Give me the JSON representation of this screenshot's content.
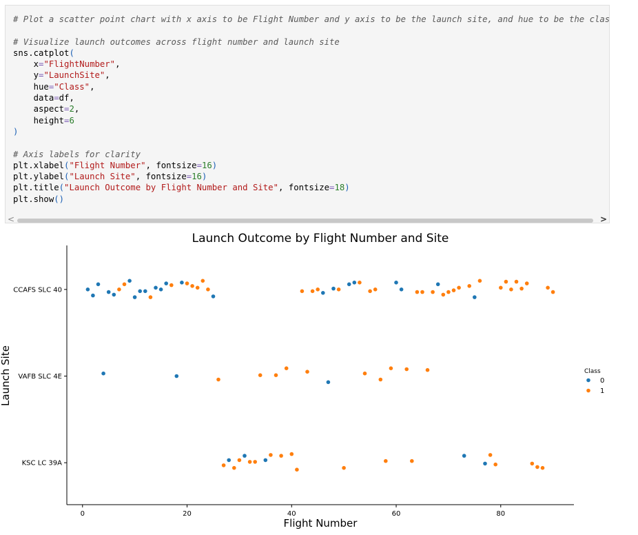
{
  "code_cell": {
    "lines": [
      [
        {
          "t": "# Plot a scatter point chart with x axis to be Flight Number and y axis to be the launch site, and hue to be the class va",
          "c": "cm"
        }
      ],
      [
        {
          "t": "",
          "c": ""
        }
      ],
      [
        {
          "t": "# Visualize launch outcomes across flight number and launch site",
          "c": "cm"
        }
      ],
      [
        {
          "t": "sns.catplot",
          "c": ""
        },
        {
          "t": "(",
          "c": "pn"
        }
      ],
      [
        {
          "t": "    x",
          "c": ""
        },
        {
          "t": "=",
          "c": "op"
        },
        {
          "t": "\"FlightNumber\"",
          "c": "str"
        },
        {
          "t": ",",
          "c": ""
        }
      ],
      [
        {
          "t": "    y",
          "c": ""
        },
        {
          "t": "=",
          "c": "op"
        },
        {
          "t": "\"LaunchSite\"",
          "c": "str"
        },
        {
          "t": ",",
          "c": ""
        }
      ],
      [
        {
          "t": "    hue",
          "c": ""
        },
        {
          "t": "=",
          "c": "op"
        },
        {
          "t": "\"Class\"",
          "c": "str"
        },
        {
          "t": ",",
          "c": ""
        }
      ],
      [
        {
          "t": "    data",
          "c": ""
        },
        {
          "t": "=",
          "c": "op"
        },
        {
          "t": "df,",
          "c": ""
        }
      ],
      [
        {
          "t": "    aspect",
          "c": ""
        },
        {
          "t": "=",
          "c": "op"
        },
        {
          "t": "2",
          "c": "num"
        },
        {
          "t": ",",
          "c": ""
        }
      ],
      [
        {
          "t": "    height",
          "c": ""
        },
        {
          "t": "=",
          "c": "op"
        },
        {
          "t": "6",
          "c": "num"
        }
      ],
      [
        {
          "t": ")",
          "c": "pn"
        }
      ],
      [
        {
          "t": "",
          "c": ""
        }
      ],
      [
        {
          "t": "# Axis labels for clarity",
          "c": "cm"
        }
      ],
      [
        {
          "t": "plt.xlabel",
          "c": ""
        },
        {
          "t": "(",
          "c": "pn"
        },
        {
          "t": "\"Flight Number\"",
          "c": "str"
        },
        {
          "t": ", fontsize",
          "c": ""
        },
        {
          "t": "=",
          "c": "op"
        },
        {
          "t": "16",
          "c": "num"
        },
        {
          "t": ")",
          "c": "pn"
        }
      ],
      [
        {
          "t": "plt.ylabel",
          "c": ""
        },
        {
          "t": "(",
          "c": "pn"
        },
        {
          "t": "\"Launch Site\"",
          "c": "str"
        },
        {
          "t": ", fontsize",
          "c": ""
        },
        {
          "t": "=",
          "c": "op"
        },
        {
          "t": "16",
          "c": "num"
        },
        {
          "t": ")",
          "c": "pn"
        }
      ],
      [
        {
          "t": "plt.title",
          "c": ""
        },
        {
          "t": "(",
          "c": "pn"
        },
        {
          "t": "\"Launch Outcome by Flight Number and Site\"",
          "c": "str"
        },
        {
          "t": ", fontsize",
          "c": ""
        },
        {
          "t": "=",
          "c": "op"
        },
        {
          "t": "18",
          "c": "num"
        },
        {
          "t": ")",
          "c": "pn"
        }
      ],
      [
        {
          "t": "plt.show",
          "c": ""
        },
        {
          "t": "()",
          "c": "pn"
        }
      ]
    ]
  },
  "scrollbar": {
    "left_icon": "chevron-left-icon",
    "right_icon": "chevron-right-icon"
  },
  "chart_data": {
    "type": "scatter",
    "title": "Launch Outcome by Flight Number and Site",
    "xlabel": "Flight Number",
    "ylabel": "Launch Site",
    "categories": [
      "CCAFS SLC 40",
      "VAFB SLC 4E",
      "KSC LC 39A"
    ],
    "xlim": [
      -3,
      94
    ],
    "xticks": [
      0,
      20,
      40,
      60,
      80
    ],
    "grid": false,
    "legend": {
      "title": "Class",
      "placement": "right",
      "entries": [
        "0",
        "1"
      ]
    },
    "colors": {
      "0": "#1f77b4",
      "1": "#ff7f0e"
    },
    "series": [
      {
        "name": "0",
        "points": [
          {
            "x": 1,
            "site": "CCAFS SLC 40",
            "jitter": 0.0
          },
          {
            "x": 2,
            "site": "CCAFS SLC 40",
            "jitter": -0.07
          },
          {
            "x": 3,
            "site": "CCAFS SLC 40",
            "jitter": 0.06
          },
          {
            "x": 5,
            "site": "CCAFS SLC 40",
            "jitter": -0.03
          },
          {
            "x": 6,
            "site": "CCAFS SLC 40",
            "jitter": -0.06
          },
          {
            "x": 9,
            "site": "CCAFS SLC 40",
            "jitter": 0.1
          },
          {
            "x": 10,
            "site": "CCAFS SLC 40",
            "jitter": -0.09
          },
          {
            "x": 11,
            "site": "CCAFS SLC 40",
            "jitter": -0.02
          },
          {
            "x": 12,
            "site": "CCAFS SLC 40",
            "jitter": -0.02
          },
          {
            "x": 14,
            "site": "CCAFS SLC 40",
            "jitter": 0.02
          },
          {
            "x": 15,
            "site": "CCAFS SLC 40",
            "jitter": 0.0
          },
          {
            "x": 16,
            "site": "CCAFS SLC 40",
            "jitter": 0.07
          },
          {
            "x": 19,
            "site": "CCAFS SLC 40",
            "jitter": 0.08
          },
          {
            "x": 25,
            "site": "CCAFS SLC 40",
            "jitter": -0.08
          },
          {
            "x": 46,
            "site": "CCAFS SLC 40",
            "jitter": -0.04
          },
          {
            "x": 48,
            "site": "CCAFS SLC 40",
            "jitter": 0.01
          },
          {
            "x": 51,
            "site": "CCAFS SLC 40",
            "jitter": 0.06
          },
          {
            "x": 52,
            "site": "CCAFS SLC 40",
            "jitter": 0.08
          },
          {
            "x": 60,
            "site": "CCAFS SLC 40",
            "jitter": 0.08
          },
          {
            "x": 61,
            "site": "CCAFS SLC 40",
            "jitter": 0.0
          },
          {
            "x": 68,
            "site": "CCAFS SLC 40",
            "jitter": 0.06
          },
          {
            "x": 75,
            "site": "CCAFS SLC 40",
            "jitter": -0.09
          },
          {
            "x": 4,
            "site": "VAFB SLC 4E",
            "jitter": 0.03
          },
          {
            "x": 18,
            "site": "VAFB SLC 4E",
            "jitter": 0.0
          },
          {
            "x": 47,
            "site": "VAFB SLC 4E",
            "jitter": -0.07
          },
          {
            "x": 28,
            "site": "KSC LC 39A",
            "jitter": 0.03
          },
          {
            "x": 31,
            "site": "KSC LC 39A",
            "jitter": 0.08
          },
          {
            "x": 35,
            "site": "KSC LC 39A",
            "jitter": 0.03
          },
          {
            "x": 73,
            "site": "KSC LC 39A",
            "jitter": 0.08
          },
          {
            "x": 77,
            "site": "KSC LC 39A",
            "jitter": -0.01
          }
        ]
      },
      {
        "name": "1",
        "points": [
          {
            "x": 7,
            "site": "CCAFS SLC 40",
            "jitter": 0.0
          },
          {
            "x": 8,
            "site": "CCAFS SLC 40",
            "jitter": 0.06
          },
          {
            "x": 13,
            "site": "CCAFS SLC 40",
            "jitter": -0.09
          },
          {
            "x": 17,
            "site": "CCAFS SLC 40",
            "jitter": 0.05
          },
          {
            "x": 20,
            "site": "CCAFS SLC 40",
            "jitter": 0.07
          },
          {
            "x": 21,
            "site": "CCAFS SLC 40",
            "jitter": 0.04
          },
          {
            "x": 22,
            "site": "CCAFS SLC 40",
            "jitter": 0.02
          },
          {
            "x": 23,
            "site": "CCAFS SLC 40",
            "jitter": 0.1
          },
          {
            "x": 24,
            "site": "CCAFS SLC 40",
            "jitter": 0.0
          },
          {
            "x": 42,
            "site": "CCAFS SLC 40",
            "jitter": -0.02
          },
          {
            "x": 44,
            "site": "CCAFS SLC 40",
            "jitter": -0.02
          },
          {
            "x": 45,
            "site": "CCAFS SLC 40",
            "jitter": 0.0
          },
          {
            "x": 49,
            "site": "CCAFS SLC 40",
            "jitter": 0.0
          },
          {
            "x": 53,
            "site": "CCAFS SLC 40",
            "jitter": 0.08
          },
          {
            "x": 55,
            "site": "CCAFS SLC 40",
            "jitter": -0.02
          },
          {
            "x": 56,
            "site": "CCAFS SLC 40",
            "jitter": 0.0
          },
          {
            "x": 64,
            "site": "CCAFS SLC 40",
            "jitter": -0.03
          },
          {
            "x": 65,
            "site": "CCAFS SLC 40",
            "jitter": -0.03
          },
          {
            "x": 67,
            "site": "CCAFS SLC 40",
            "jitter": -0.03
          },
          {
            "x": 69,
            "site": "CCAFS SLC 40",
            "jitter": -0.06
          },
          {
            "x": 70,
            "site": "CCAFS SLC 40",
            "jitter": -0.03
          },
          {
            "x": 71,
            "site": "CCAFS SLC 40",
            "jitter": -0.01
          },
          {
            "x": 72,
            "site": "CCAFS SLC 40",
            "jitter": 0.02
          },
          {
            "x": 74,
            "site": "CCAFS SLC 40",
            "jitter": 0.04
          },
          {
            "x": 76,
            "site": "CCAFS SLC 40",
            "jitter": 0.1
          },
          {
            "x": 80,
            "site": "CCAFS SLC 40",
            "jitter": 0.02
          },
          {
            "x": 81,
            "site": "CCAFS SLC 40",
            "jitter": 0.09
          },
          {
            "x": 82,
            "site": "CCAFS SLC 40",
            "jitter": 0.0
          },
          {
            "x": 83,
            "site": "CCAFS SLC 40",
            "jitter": 0.09
          },
          {
            "x": 84,
            "site": "CCAFS SLC 40",
            "jitter": 0.01
          },
          {
            "x": 85,
            "site": "CCAFS SLC 40",
            "jitter": 0.07
          },
          {
            "x": 89,
            "site": "CCAFS SLC 40",
            "jitter": 0.02
          },
          {
            "x": 90,
            "site": "CCAFS SLC 40",
            "jitter": -0.03
          },
          {
            "x": 26,
            "site": "VAFB SLC 4E",
            "jitter": -0.04
          },
          {
            "x": 34,
            "site": "VAFB SLC 4E",
            "jitter": 0.01
          },
          {
            "x": 37,
            "site": "VAFB SLC 4E",
            "jitter": 0.01
          },
          {
            "x": 39,
            "site": "VAFB SLC 4E",
            "jitter": 0.09
          },
          {
            "x": 43,
            "site": "VAFB SLC 4E",
            "jitter": 0.05
          },
          {
            "x": 54,
            "site": "VAFB SLC 4E",
            "jitter": 0.03
          },
          {
            "x": 57,
            "site": "VAFB SLC 4E",
            "jitter": -0.04
          },
          {
            "x": 59,
            "site": "VAFB SLC 4E",
            "jitter": 0.09
          },
          {
            "x": 62,
            "site": "VAFB SLC 4E",
            "jitter": 0.08
          },
          {
            "x": 66,
            "site": "VAFB SLC 4E",
            "jitter": 0.07
          },
          {
            "x": 27,
            "site": "KSC LC 39A",
            "jitter": -0.03
          },
          {
            "x": 29,
            "site": "KSC LC 39A",
            "jitter": -0.06
          },
          {
            "x": 30,
            "site": "KSC LC 39A",
            "jitter": 0.03
          },
          {
            "x": 32,
            "site": "KSC LC 39A",
            "jitter": 0.01
          },
          {
            "x": 33,
            "site": "KSC LC 39A",
            "jitter": 0.01
          },
          {
            "x": 36,
            "site": "KSC LC 39A",
            "jitter": 0.09
          },
          {
            "x": 38,
            "site": "KSC LC 39A",
            "jitter": 0.08
          },
          {
            "x": 40,
            "site": "KSC LC 39A",
            "jitter": 0.1
          },
          {
            "x": 41,
            "site": "KSC LC 39A",
            "jitter": -0.08
          },
          {
            "x": 50,
            "site": "KSC LC 39A",
            "jitter": -0.06
          },
          {
            "x": 58,
            "site": "KSC LC 39A",
            "jitter": 0.02
          },
          {
            "x": 63,
            "site": "KSC LC 39A",
            "jitter": 0.02
          },
          {
            "x": 78,
            "site": "KSC LC 39A",
            "jitter": 0.09
          },
          {
            "x": 79,
            "site": "KSC LC 39A",
            "jitter": -0.02
          },
          {
            "x": 86,
            "site": "KSC LC 39A",
            "jitter": -0.01
          },
          {
            "x": 87,
            "site": "KSC LC 39A",
            "jitter": -0.05
          },
          {
            "x": 88,
            "site": "KSC LC 39A",
            "jitter": -0.06
          }
        ]
      }
    ]
  }
}
